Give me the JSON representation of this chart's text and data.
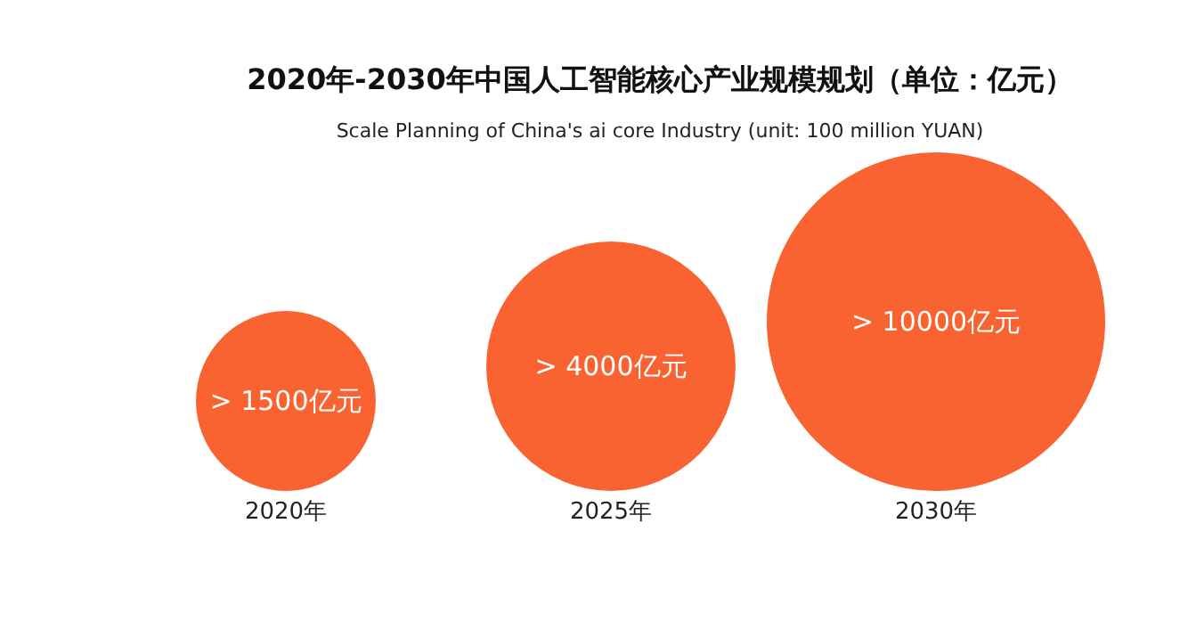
{
  "chart_data": {
    "type": "other",
    "title": "2020年-2030年中国人工智能核心产业规模规划（单位：亿元）",
    "subtitle": "Scale Planning of China's ai core Industry (unit: 100 million YUAN)",
    "categories": [
      "2020年",
      "2025年",
      "2030年"
    ],
    "values": [
      1500,
      4000,
      10000
    ],
    "value_labels": [
      "> 1500亿元",
      "> 4000亿元",
      "> 10000亿元"
    ],
    "color": "#f96332"
  }
}
